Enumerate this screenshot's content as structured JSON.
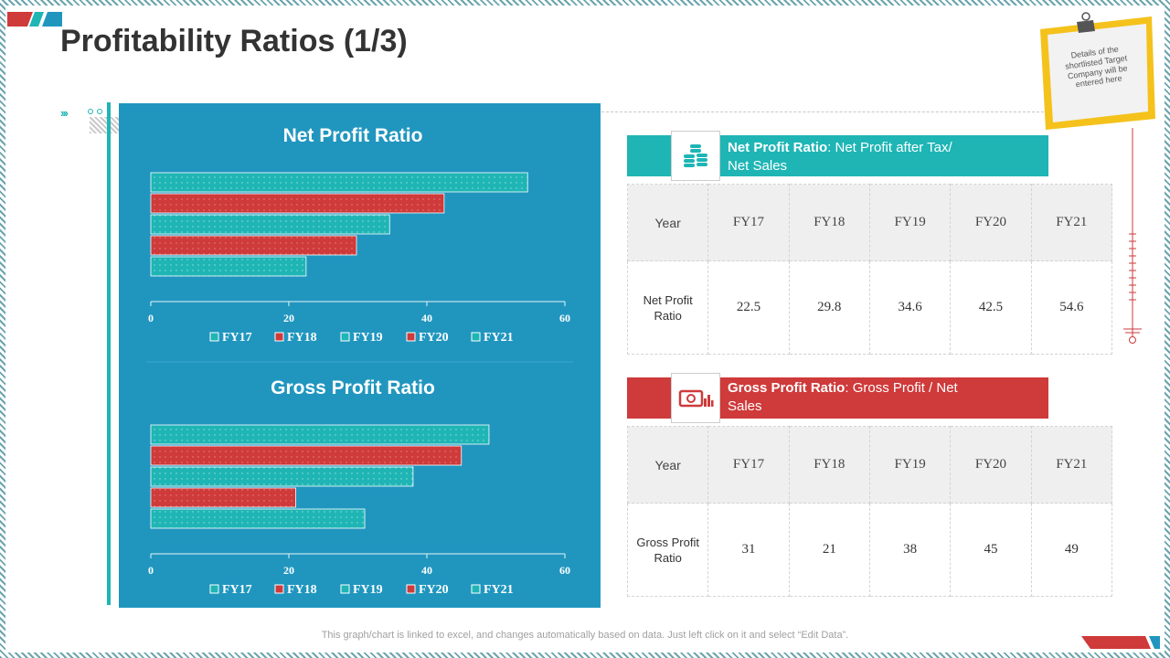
{
  "title": "Profitability Ratios (1/3)",
  "sticky_note": "Details of the shortlisted Target Company will be entered here",
  "footer": "This graph/chart is linked to excel,  and changes automatically based on data. Just left click on it and select “Edit Data”.",
  "colors": {
    "teal": "#1fb5b5",
    "red": "#cf3a3a",
    "panel": "#2096bf"
  },
  "net_section": {
    "header_bold": "Net Profit Ratio",
    "header_rest": ": Net Profit after Tax/ Net Sales",
    "icon": "coins-stack-icon",
    "year_label": "Year",
    "years": [
      "FY17",
      "FY18",
      "FY19",
      "FY20",
      "FY21"
    ],
    "row_label": "Net Profit Ratio",
    "values": [
      "22.5",
      "29.8",
      "34.6",
      "42.5",
      "54.6"
    ]
  },
  "gross_section": {
    "header_bold": "Gross Profit Ratio",
    "header_rest": ": Gross Profit / Net Sales",
    "icon": "cash-chart-icon",
    "year_label": "Year",
    "years": [
      "FY17",
      "FY18",
      "FY19",
      "FY20",
      "FY21"
    ],
    "row_label": "Gross Profit Ratio",
    "values": [
      "31",
      "21",
      "38",
      "45",
      "49"
    ]
  },
  "chart_data": [
    {
      "type": "bar",
      "orientation": "horizontal",
      "title": "Net Profit Ratio",
      "categories": [
        "FY17",
        "FY18",
        "FY19",
        "FY20",
        "FY21"
      ],
      "values": [
        22.5,
        29.8,
        34.6,
        42.5,
        54.6
      ],
      "colors": [
        "#1fb5b5",
        "#cf3a3a",
        "#1fb5b5",
        "#cf3a3a",
        "#1fb5b5"
      ],
      "xlim": [
        0,
        60
      ],
      "ticks": [
        0,
        20,
        40,
        60
      ],
      "legend": "bottom"
    },
    {
      "type": "bar",
      "orientation": "horizontal",
      "title": "Gross Profit Ratio",
      "categories": [
        "FY17",
        "FY18",
        "FY19",
        "FY20",
        "FY21"
      ],
      "values": [
        31,
        21,
        38,
        45,
        49
      ],
      "colors": [
        "#1fb5b5",
        "#cf3a3a",
        "#1fb5b5",
        "#cf3a3a",
        "#1fb5b5"
      ],
      "xlim": [
        0,
        60
      ],
      "ticks": [
        0,
        20,
        40,
        60
      ],
      "legend": "bottom"
    }
  ]
}
